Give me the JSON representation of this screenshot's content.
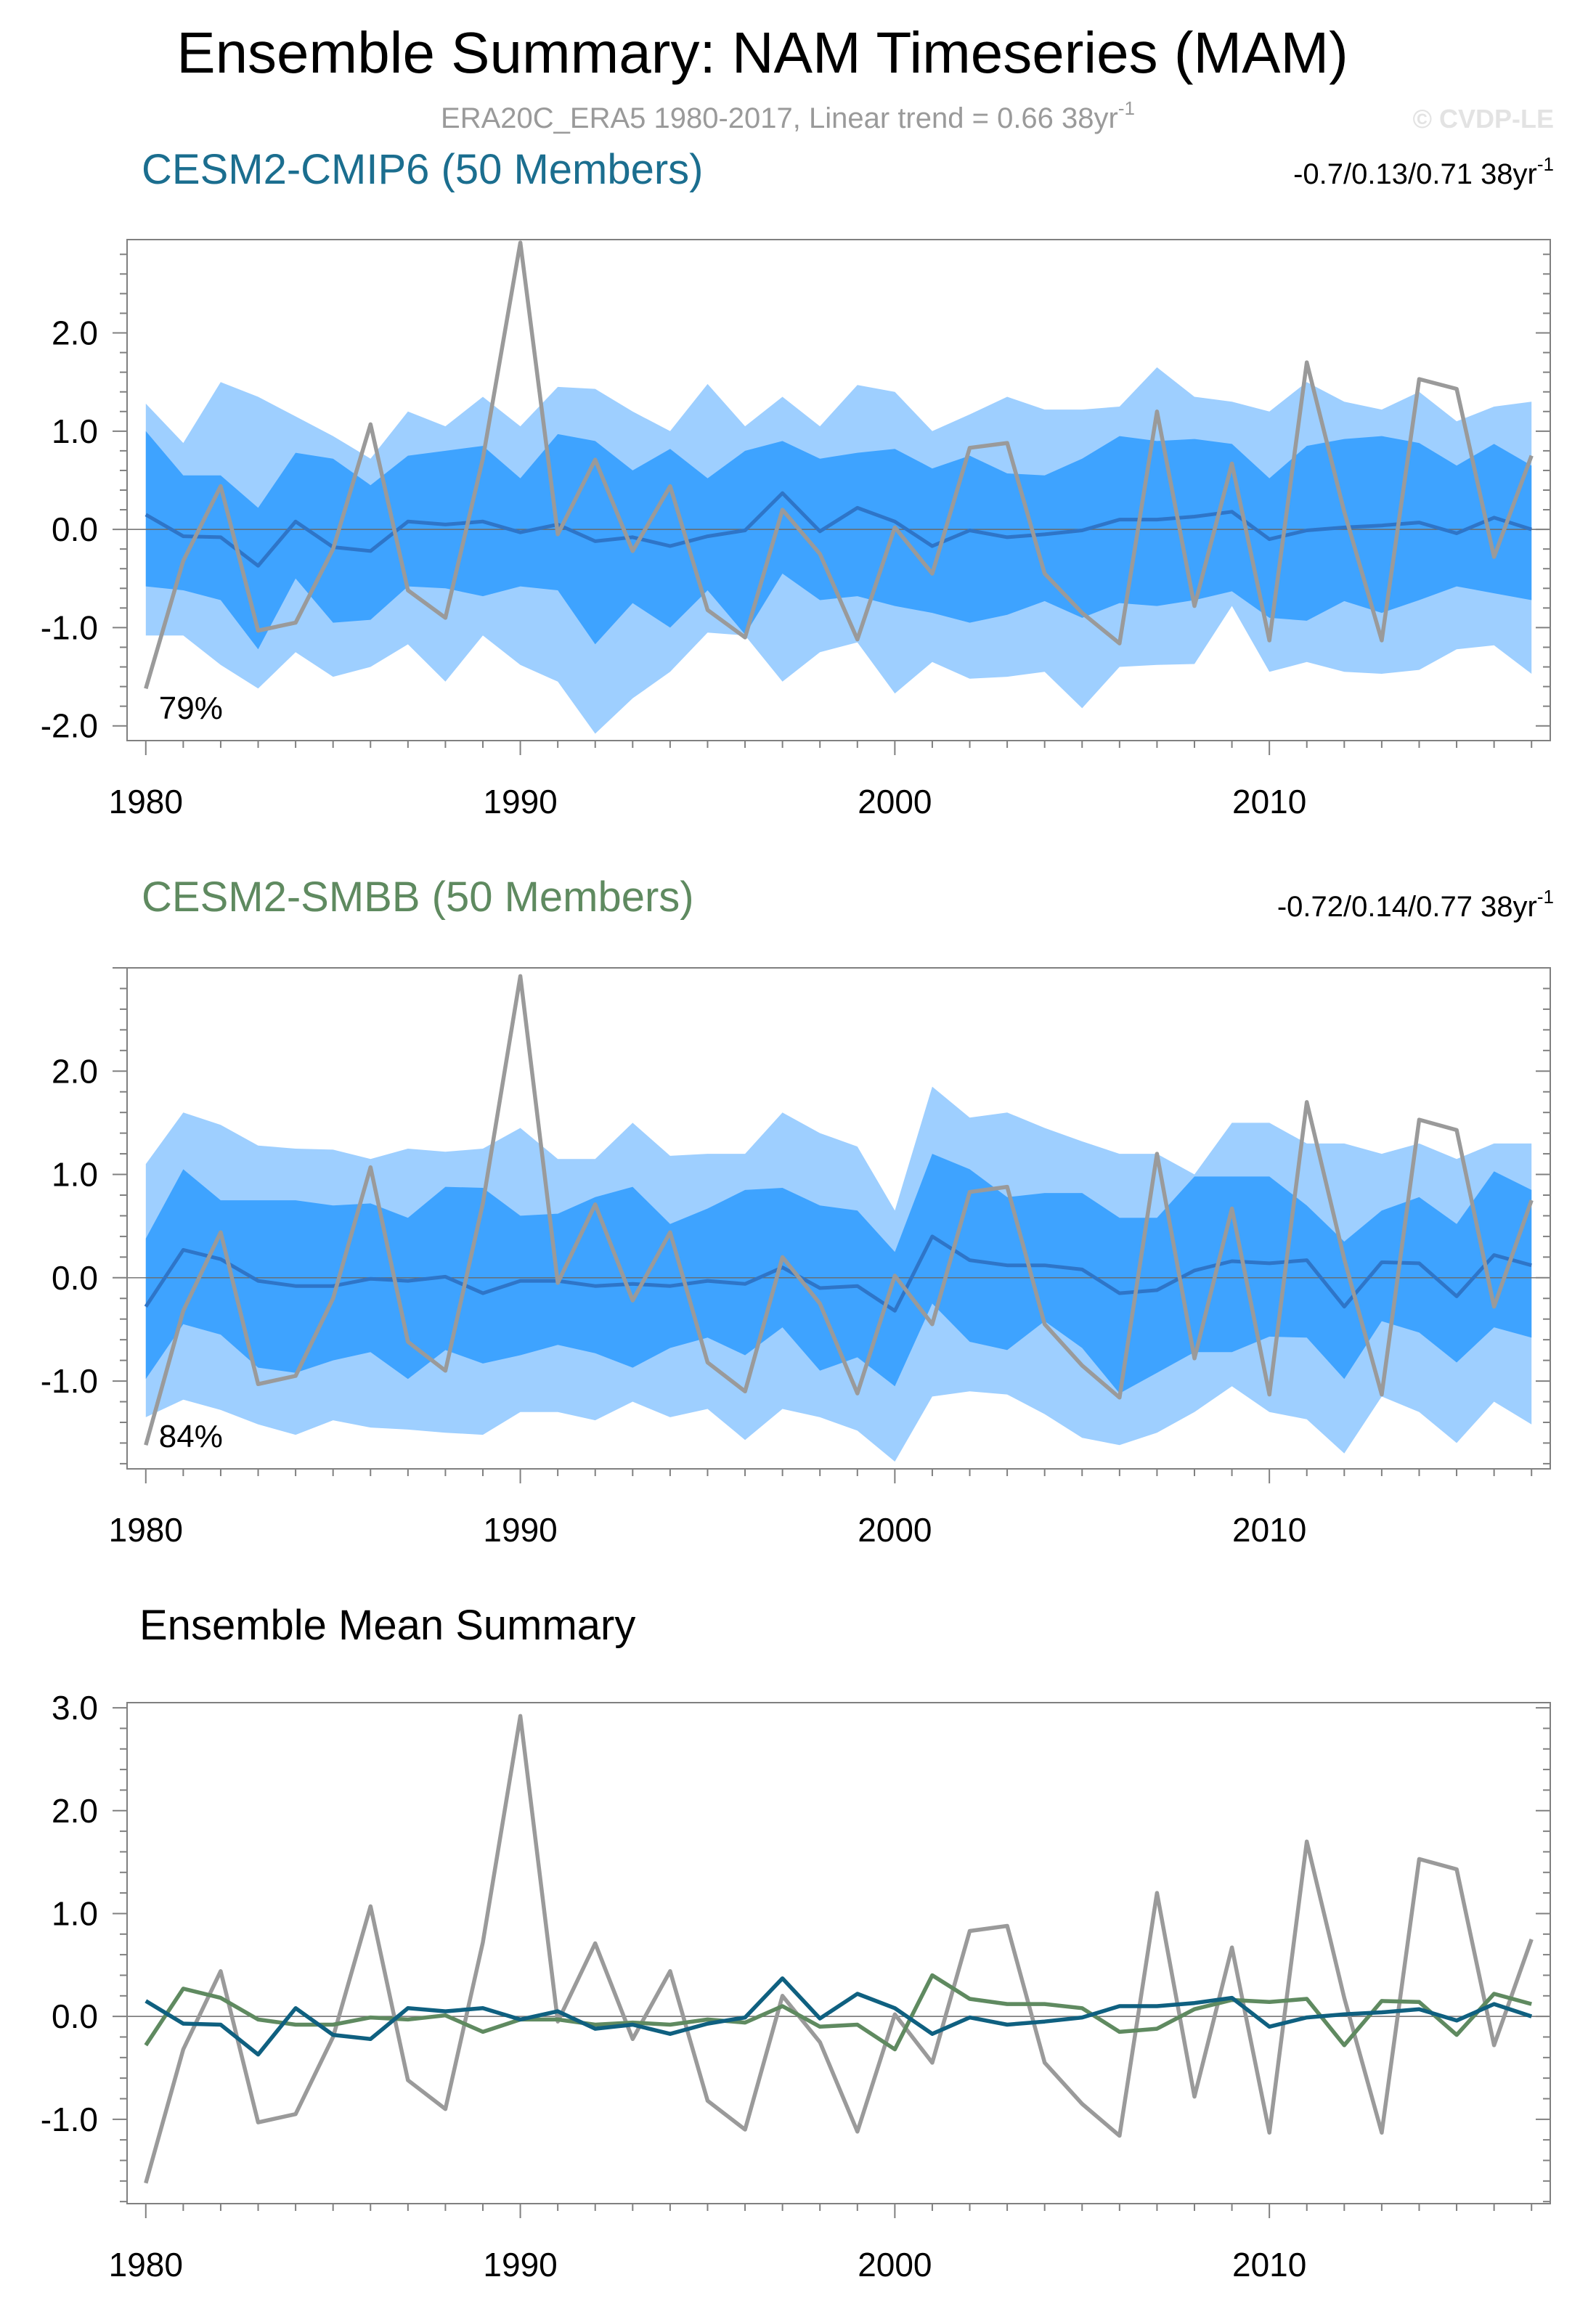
{
  "figure": {
    "title": "Ensemble Summary: NAM Timeseries (MAM)",
    "subtitle": "ERA20C_ERA5 1980-2017, Linear trend = 0.66 38yr",
    "subtitle_sup": "-1",
    "watermark": "© CVDP-LE"
  },
  "colors": {
    "outer_band": "#9ecfff",
    "inner_band": "#3ea3ff",
    "cmip6_title": "#1b6e8f",
    "cmip6_line": "#2e75c8",
    "cmip6_summary_line": "#0f6080",
    "smbb_title": "#5f8a60",
    "smbb_line": "#2e75c8",
    "smbb_summary_line": "#5f8a60",
    "obs_line": "#9a9a9a",
    "axis": "#808080"
  },
  "chart_data": [
    {
      "type": "area",
      "id": "cmip6",
      "title": "CESM2-CMIP6 (50 Members)",
      "trend_label": "-0.7/0.13/0.71 38yr",
      "trend_sup": "-1",
      "percent_label": "79%",
      "xlim": [
        1979.5,
        2017.5
      ],
      "ylim": [
        -2.15,
        2.95
      ],
      "xticks": [
        "1980",
        "1990",
        "2000",
        "2010"
      ],
      "yticks": [
        "2.0",
        "1.0",
        "0.0",
        "-1.0",
        "-2.0"
      ],
      "x": [
        1980,
        1981,
        1982,
        1983,
        1984,
        1985,
        1986,
        1987,
        1988,
        1989,
        1990,
        1991,
        1992,
        1993,
        1994,
        1995,
        1996,
        1997,
        1998,
        1999,
        2000,
        2001,
        2002,
        2003,
        2004,
        2005,
        2006,
        2007,
        2008,
        2009,
        2010,
        2011,
        2012,
        2013,
        2014,
        2015,
        2016,
        2017
      ],
      "outer_upper": [
        1.28,
        0.88,
        1.5,
        1.35,
        1.15,
        0.95,
        0.72,
        1.2,
        1.05,
        1.35,
        1.05,
        1.45,
        1.43,
        1.2,
        1.0,
        1.48,
        1.05,
        1.35,
        1.05,
        1.47,
        1.4,
        1.0,
        1.17,
        1.35,
        1.22,
        1.22,
        1.25,
        1.65,
        1.35,
        1.3,
        1.2,
        1.5,
        1.3,
        1.22,
        1.4,
        1.1,
        1.25,
        1.3
      ],
      "inner_upper": [
        1.0,
        0.55,
        0.55,
        0.22,
        0.78,
        0.72,
        0.45,
        0.75,
        0.8,
        0.85,
        0.52,
        0.97,
        0.9,
        0.6,
        0.82,
        0.52,
        0.8,
        0.9,
        0.72,
        0.78,
        0.82,
        0.62,
        0.75,
        0.57,
        0.55,
        0.72,
        0.95,
        0.9,
        0.92,
        0.87,
        0.52,
        0.85,
        0.92,
        0.95,
        0.88,
        0.65,
        0.87,
        0.65
      ],
      "mean": [
        0.15,
        -0.07,
        -0.08,
        -0.37,
        0.08,
        -0.18,
        -0.22,
        0.08,
        0.05,
        0.08,
        -0.03,
        0.05,
        -0.12,
        -0.08,
        -0.17,
        -0.07,
        -0.01,
        0.37,
        -0.02,
        0.22,
        0.08,
        -0.17,
        -0.01,
        -0.08,
        -0.05,
        -0.01,
        0.1,
        0.1,
        0.13,
        0.18,
        -0.1,
        -0.01,
        0.02,
        0.04,
        0.07,
        -0.04,
        0.12,
        0.0
      ],
      "inner_lower": [
        -0.58,
        -0.62,
        -0.72,
        -1.22,
        -0.5,
        -0.95,
        -0.92,
        -0.58,
        -0.6,
        -0.68,
        -0.58,
        -0.62,
        -1.17,
        -0.75,
        -1.0,
        -0.62,
        -1.07,
        -0.45,
        -0.72,
        -0.68,
        -0.78,
        -0.85,
        -0.95,
        -0.87,
        -0.73,
        -0.9,
        -0.75,
        -0.78,
        -0.72,
        -0.63,
        -0.9,
        -0.93,
        -0.73,
        -0.85,
        -0.72,
        -0.58,
        -0.65,
        -0.72
      ],
      "outer_lower": [
        -1.08,
        -1.08,
        -1.38,
        -1.62,
        -1.25,
        -1.5,
        -1.4,
        -1.17,
        -1.55,
        -1.08,
        -1.38,
        -1.55,
        -2.08,
        -1.72,
        -1.45,
        -1.05,
        -1.08,
        -1.55,
        -1.25,
        -1.15,
        -1.67,
        -1.35,
        -1.52,
        -1.5,
        -1.45,
        -1.82,
        -1.4,
        -1.38,
        -1.37,
        -0.78,
        -1.45,
        -1.35,
        -1.45,
        -1.47,
        -1.43,
        -1.22,
        -1.18,
        -1.47
      ],
      "obs": [
        -1.62,
        -0.32,
        0.44,
        -1.03,
        -0.95,
        -0.2,
        1.07,
        -0.62,
        -0.9,
        0.72,
        2.92,
        -0.05,
        0.71,
        -0.22,
        0.44,
        -0.82,
        -1.1,
        0.2,
        -0.25,
        -1.12,
        0.02,
        -0.45,
        0.83,
        0.88,
        -0.45,
        -0.85,
        -1.16,
        1.2,
        -0.78,
        0.67,
        -1.13,
        1.7,
        0.18,
        -1.13,
        1.53,
        1.43,
        -0.28,
        0.75
      ]
    },
    {
      "type": "area",
      "id": "smbb",
      "title": "CESM2-SMBB (50 Members)",
      "trend_label": "-0.72/0.14/0.77 38yr",
      "trend_sup": "-1",
      "percent_label": "84%",
      "xlim": [
        1979.5,
        2017.5
      ],
      "ylim": [
        -1.85,
        3.0
      ],
      "xticks": [
        "1980",
        "1990",
        "2000",
        "2010"
      ],
      "yticks": [
        "2.0",
        "1.0",
        "0.0",
        "-1.0"
      ],
      "x": [
        1980,
        1981,
        1982,
        1983,
        1984,
        1985,
        1986,
        1987,
        1988,
        1989,
        1990,
        1991,
        1992,
        1993,
        1994,
        1995,
        1996,
        1997,
        1998,
        1999,
        2000,
        2001,
        2002,
        2003,
        2004,
        2005,
        2006,
        2007,
        2008,
        2009,
        2010,
        2011,
        2012,
        2013,
        2014,
        2015,
        2016,
        2017
      ],
      "outer_upper": [
        1.1,
        1.6,
        1.48,
        1.28,
        1.25,
        1.24,
        1.15,
        1.25,
        1.22,
        1.25,
        1.45,
        1.15,
        1.15,
        1.5,
        1.18,
        1.2,
        1.2,
        1.6,
        1.4,
        1.27,
        0.65,
        1.85,
        1.55,
        1.6,
        1.45,
        1.32,
        1.2,
        1.2,
        1.0,
        1.5,
        1.5,
        1.3,
        1.3,
        1.2,
        1.3,
        1.15,
        1.3,
        1.3
      ],
      "inner_upper": [
        0.38,
        1.05,
        0.75,
        0.75,
        0.75,
        0.7,
        0.72,
        0.58,
        0.88,
        0.87,
        0.6,
        0.62,
        0.78,
        0.88,
        0.52,
        0.67,
        0.85,
        0.87,
        0.7,
        0.65,
        0.25,
        1.2,
        1.05,
        0.78,
        0.82,
        0.82,
        0.58,
        0.58,
        0.98,
        0.98,
        0.98,
        0.7,
        0.35,
        0.65,
        0.78,
        0.52,
        1.03,
        0.85
      ],
      "mean": [
        -0.28,
        0.27,
        0.18,
        -0.03,
        -0.08,
        -0.08,
        -0.01,
        -0.03,
        0.01,
        -0.15,
        -0.03,
        -0.03,
        -0.08,
        -0.06,
        -0.08,
        -0.03,
        -0.06,
        0.1,
        -0.1,
        -0.08,
        -0.32,
        0.4,
        0.17,
        0.12,
        0.12,
        0.08,
        -0.15,
        -0.12,
        0.07,
        0.16,
        0.14,
        0.17,
        -0.28,
        0.15,
        0.14,
        -0.18,
        0.22,
        0.12
      ],
      "inner_lower": [
        -0.98,
        -0.45,
        -0.55,
        -0.87,
        -0.92,
        -0.8,
        -0.72,
        -0.98,
        -0.7,
        -0.83,
        -0.75,
        -0.65,
        -0.73,
        -0.87,
        -0.68,
        -0.58,
        -0.75,
        -0.48,
        -0.9,
        -0.77,
        -1.05,
        -0.25,
        -0.62,
        -0.7,
        -0.42,
        -0.68,
        -1.12,
        -0.92,
        -0.72,
        -0.72,
        -0.57,
        -0.58,
        -0.98,
        -0.42,
        -0.53,
        -0.82,
        -0.48,
        -0.58
      ],
      "outer_lower": [
        -1.35,
        -1.18,
        -1.28,
        -1.42,
        -1.52,
        -1.38,
        -1.45,
        -1.47,
        -1.5,
        -1.52,
        -1.3,
        -1.3,
        -1.38,
        -1.2,
        -1.35,
        -1.27,
        -1.57,
        -1.27,
        -1.35,
        -1.48,
        -1.78,
        -1.15,
        -1.1,
        -1.13,
        -1.32,
        -1.55,
        -1.62,
        -1.5,
        -1.3,
        -1.05,
        -1.3,
        -1.37,
        -1.7,
        -1.15,
        -1.3,
        -1.6,
        -1.2,
        -1.42
      ],
      "obs": [
        -1.62,
        -0.32,
        0.44,
        -1.03,
        -0.95,
        -0.2,
        1.07,
        -0.62,
        -0.9,
        0.72,
        2.92,
        -0.05,
        0.71,
        -0.22,
        0.44,
        -0.82,
        -1.1,
        0.2,
        -0.25,
        -1.12,
        0.02,
        -0.45,
        0.83,
        0.88,
        -0.45,
        -0.85,
        -1.16,
        1.2,
        -0.78,
        0.67,
        -1.13,
        1.7,
        0.18,
        -1.13,
        1.53,
        1.43,
        -0.28,
        0.75
      ]
    },
    {
      "type": "line",
      "id": "summary",
      "title": "Ensemble Mean Summary",
      "xlim": [
        1979.5,
        2017.5
      ],
      "ylim": [
        -1.82,
        3.05
      ],
      "xticks": [
        "1980",
        "1990",
        "2000",
        "2010"
      ],
      "yticks": [
        "3.0",
        "2.0",
        "1.0",
        "0.0",
        "-1.0"
      ],
      "x": [
        1980,
        1981,
        1982,
        1983,
        1984,
        1985,
        1986,
        1987,
        1988,
        1989,
        1990,
        1991,
        1992,
        1993,
        1994,
        1995,
        1996,
        1997,
        1998,
        1999,
        2000,
        2001,
        2002,
        2003,
        2004,
        2005,
        2006,
        2007,
        2008,
        2009,
        2010,
        2011,
        2012,
        2013,
        2014,
        2015,
        2016,
        2017
      ],
      "series": [
        {
          "name": "ERA20C_ERA5",
          "values": [
            -1.62,
            -0.32,
            0.44,
            -1.03,
            -0.95,
            -0.2,
            1.07,
            -0.62,
            -0.9,
            0.72,
            2.92,
            -0.05,
            0.71,
            -0.22,
            0.44,
            -0.82,
            -1.1,
            0.2,
            -0.25,
            -1.12,
            0.02,
            -0.45,
            0.83,
            0.88,
            -0.45,
            -0.85,
            -1.16,
            1.2,
            -0.78,
            0.67,
            -1.13,
            1.7,
            0.18,
            -1.13,
            1.53,
            1.43,
            -0.28,
            0.75
          ]
        },
        {
          "name": "CESM2-SMBB",
          "values": [
            -0.28,
            0.27,
            0.18,
            -0.03,
            -0.08,
            -0.08,
            -0.01,
            -0.03,
            0.01,
            -0.15,
            -0.03,
            -0.03,
            -0.08,
            -0.06,
            -0.08,
            -0.03,
            -0.06,
            0.1,
            -0.1,
            -0.08,
            -0.32,
            0.4,
            0.17,
            0.12,
            0.12,
            0.08,
            -0.15,
            -0.12,
            0.07,
            0.16,
            0.14,
            0.17,
            -0.28,
            0.15,
            0.14,
            -0.18,
            0.22,
            0.12
          ]
        },
        {
          "name": "CESM2-CMIP6",
          "values": [
            0.15,
            -0.07,
            -0.08,
            -0.37,
            0.08,
            -0.18,
            -0.22,
            0.08,
            0.05,
            0.08,
            -0.03,
            0.05,
            -0.12,
            -0.08,
            -0.17,
            -0.07,
            -0.01,
            0.37,
            -0.02,
            0.22,
            0.08,
            -0.17,
            -0.01,
            -0.08,
            -0.05,
            -0.01,
            0.1,
            0.1,
            0.13,
            0.18,
            -0.1,
            -0.01,
            0.02,
            0.04,
            0.07,
            -0.04,
            0.12,
            0.0
          ]
        }
      ]
    }
  ]
}
